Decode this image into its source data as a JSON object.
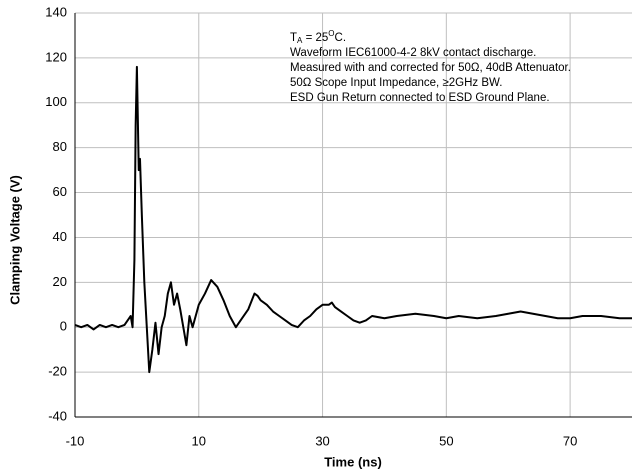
{
  "chart_data": {
    "type": "line",
    "xlabel": "Time (ns)",
    "ylabel": "Clamping Voltage (V)",
    "annotation_first_line": [
      "T",
      "A",
      " = 25",
      "O",
      "C."
    ],
    "annotations": [
      "Waveform IEC61000-4-2 8kV contact discharge.",
      "Measured with and corrected for 50Ω, 40dB Attenuator.",
      "50Ω Scope Input Impedance, ≥2GHz BW.",
      "ESD Gun Return connected to ESD Ground Plane."
    ],
    "xlim": [
      -10,
      80
    ],
    "xticks": [
      -10,
      10,
      30,
      50,
      70
    ],
    "ylim": [
      -40,
      140
    ],
    "yticks": [
      -40,
      -20,
      0,
      20,
      40,
      60,
      80,
      100,
      120,
      140
    ],
    "grid": true,
    "series": [
      {
        "color": "#000000",
        "x": [
          -10,
          -9,
          -8,
          -7,
          -6,
          -5,
          -4,
          -3,
          -2,
          -1.5,
          -1,
          -0.7,
          -0.4,
          -0.2,
          0,
          0.3,
          0.5,
          0.8,
          1.2,
          1.6,
          2,
          2.5,
          3,
          3.5,
          4,
          4.5,
          5,
          5.5,
          6,
          6.5,
          7,
          7.5,
          8,
          8.5,
          9,
          10,
          11,
          12,
          13,
          14,
          15,
          16,
          17,
          18,
          19,
          19.5,
          20,
          21,
          22,
          23,
          24,
          25,
          26,
          27,
          28,
          29,
          30,
          31,
          31.5,
          32,
          33,
          34,
          35,
          36,
          37,
          38,
          40,
          42,
          45,
          48,
          50,
          52,
          55,
          58,
          60,
          62,
          64,
          66,
          68,
          70,
          72,
          75,
          78,
          80
        ],
        "values": [
          1,
          0,
          1,
          -1,
          1,
          0,
          1,
          0,
          1,
          3,
          5,
          0,
          30,
          90,
          116,
          70,
          75,
          50,
          20,
          0,
          -20,
          -10,
          2,
          -12,
          0,
          5,
          15,
          20,
          10,
          15,
          8,
          0,
          -8,
          5,
          0,
          10,
          15,
          21,
          18,
          12,
          5,
          0,
          4,
          8,
          15,
          14,
          12,
          10,
          7,
          5,
          3,
          1,
          0,
          3,
          5,
          8,
          10,
          10,
          11,
          9,
          7,
          5,
          3,
          2,
          3,
          5,
          4,
          5,
          6,
          5,
          4,
          5,
          4,
          5,
          6,
          7,
          6,
          5,
          4,
          4,
          5,
          5,
          4,
          4
        ]
      }
    ]
  }
}
